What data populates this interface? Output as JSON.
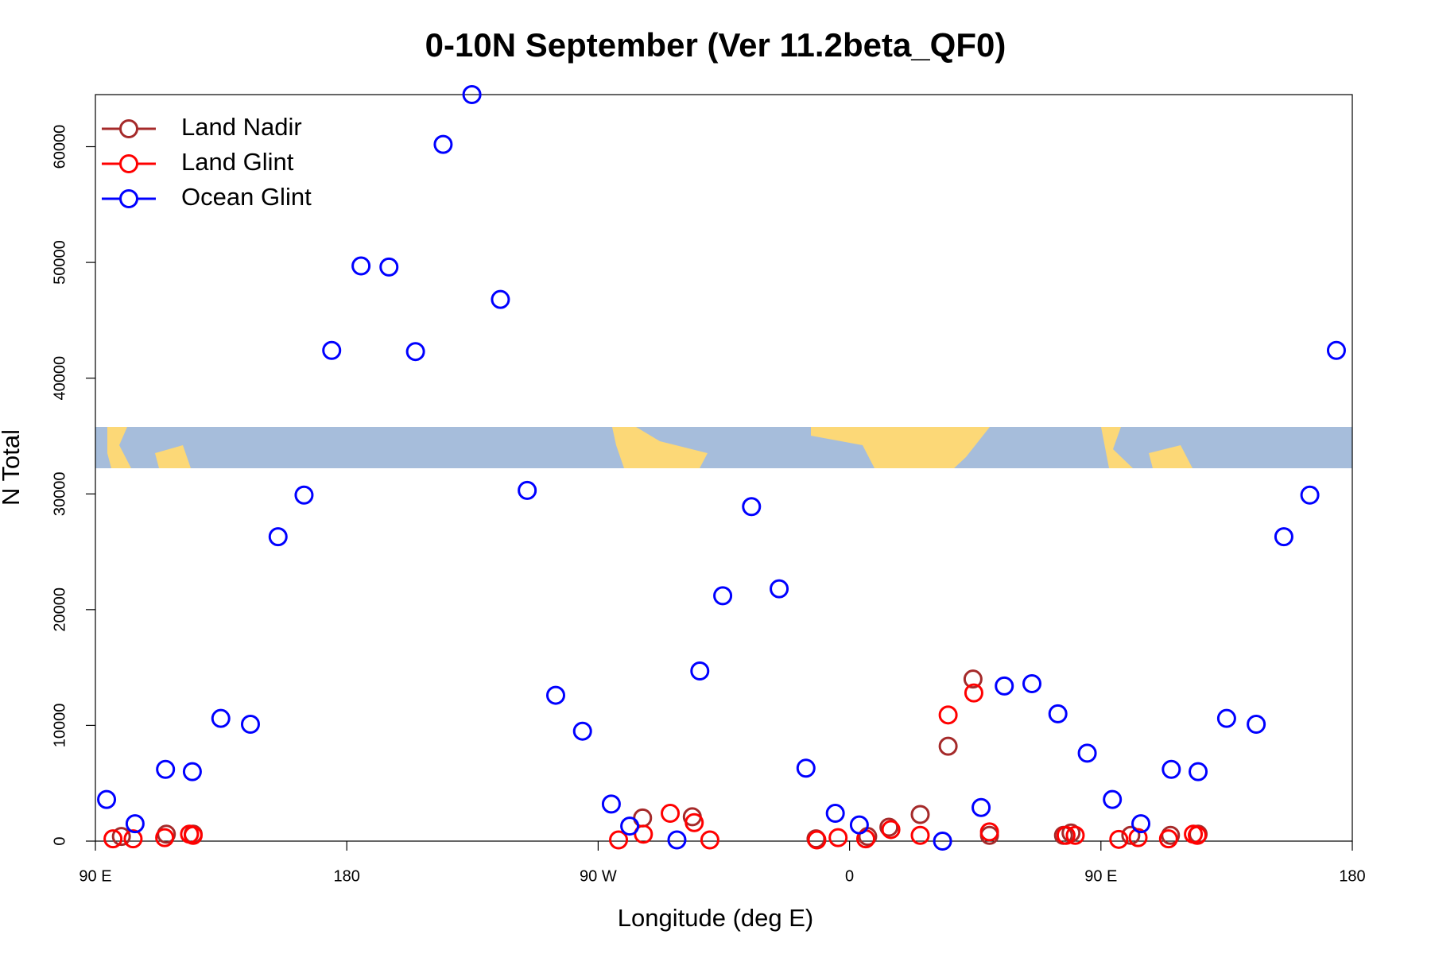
{
  "chart_data": {
    "type": "scatter",
    "title": "0-10N September (Ver 11.2beta_QF0)",
    "xlabel": "Longitude (deg E)",
    "ylabel": "N Total",
    "xlim": [
      90,
      540
    ],
    "ylim": [
      0,
      64500
    ],
    "xticks": [
      {
        "value": 90,
        "label": "90 E"
      },
      {
        "value": 180,
        "label": "180"
      },
      {
        "value": 270,
        "label": "90 W"
      },
      {
        "value": 360,
        "label": "0"
      },
      {
        "value": 450,
        "label": "90 E"
      },
      {
        "value": 540,
        "label": "180"
      }
    ],
    "yticks": [
      0,
      10000,
      20000,
      30000,
      40000,
      50000,
      60000
    ],
    "legend": "topleft",
    "series": [
      {
        "name": "Land Nadir",
        "color": "#a52a2a",
        "x": [
          99.3,
          115.4,
          125,
          285.9,
          303.7,
          348,
          366.5,
          374.1,
          385.3,
          395.3,
          404.2,
          410.1,
          436.6,
          439.3,
          460.7,
          474.9,
          484.8
        ],
        "values": [
          400,
          600,
          600,
          2000,
          2100,
          200,
          400,
          1200,
          2300,
          8200,
          14000,
          500,
          500,
          700,
          500,
          500,
          600
        ]
      },
      {
        "name": "Land Glint",
        "color": "#ff0000",
        "x": [
          96.3,
          103.5,
          114.8,
          123.7,
          125,
          277.3,
          286.2,
          295.8,
          304.4,
          310,
          348.3,
          355.9,
          365.8,
          374.8,
          385.3,
          395.3,
          404.5,
          410.1,
          437.5,
          440.8,
          456.4,
          463.3,
          474.2,
          483.1,
          484.5
        ],
        "values": [
          200,
          200,
          300,
          600,
          500,
          100,
          600,
          2400,
          1600,
          100,
          100,
          300,
          200,
          1000,
          500,
          10900,
          12800,
          800,
          500,
          500,
          150,
          300,
          200,
          600,
          500
        ]
      },
      {
        "name": "Ocean Glint",
        "color": "#0000ff",
        "x": [
          94,
          104.2,
          115.1,
          124.7,
          134.9,
          145.5,
          155.4,
          164.7,
          174.6,
          185.1,
          195.1,
          204.6,
          214.5,
          224.8,
          235,
          244.6,
          254.8,
          264.4,
          274.7,
          281.3,
          298.2,
          306.4,
          314.6,
          324.9,
          334.8,
          344.4,
          354.9,
          363.5,
          393.3,
          407.1,
          415.4,
          425.3,
          434.6,
          445.1,
          454.1,
          464.3,
          475.2,
          484.8,
          495,
          505.6,
          515.5,
          524.8,
          534.3
        ],
        "values": [
          3600,
          1500,
          6200,
          6000,
          10600,
          10100,
          26300,
          29900,
          42400,
          49700,
          49600,
          42300,
          60200,
          64500,
          46800,
          30300,
          12600,
          9500,
          3200,
          1300,
          100,
          14700,
          21200,
          28900,
          21800,
          6300,
          2400,
          1400,
          0,
          2900,
          13400,
          13600,
          11000,
          7600,
          3600,
          1500,
          6200,
          6000,
          10600,
          10100,
          26300,
          29900,
          42400
        ]
      }
    ]
  }
}
